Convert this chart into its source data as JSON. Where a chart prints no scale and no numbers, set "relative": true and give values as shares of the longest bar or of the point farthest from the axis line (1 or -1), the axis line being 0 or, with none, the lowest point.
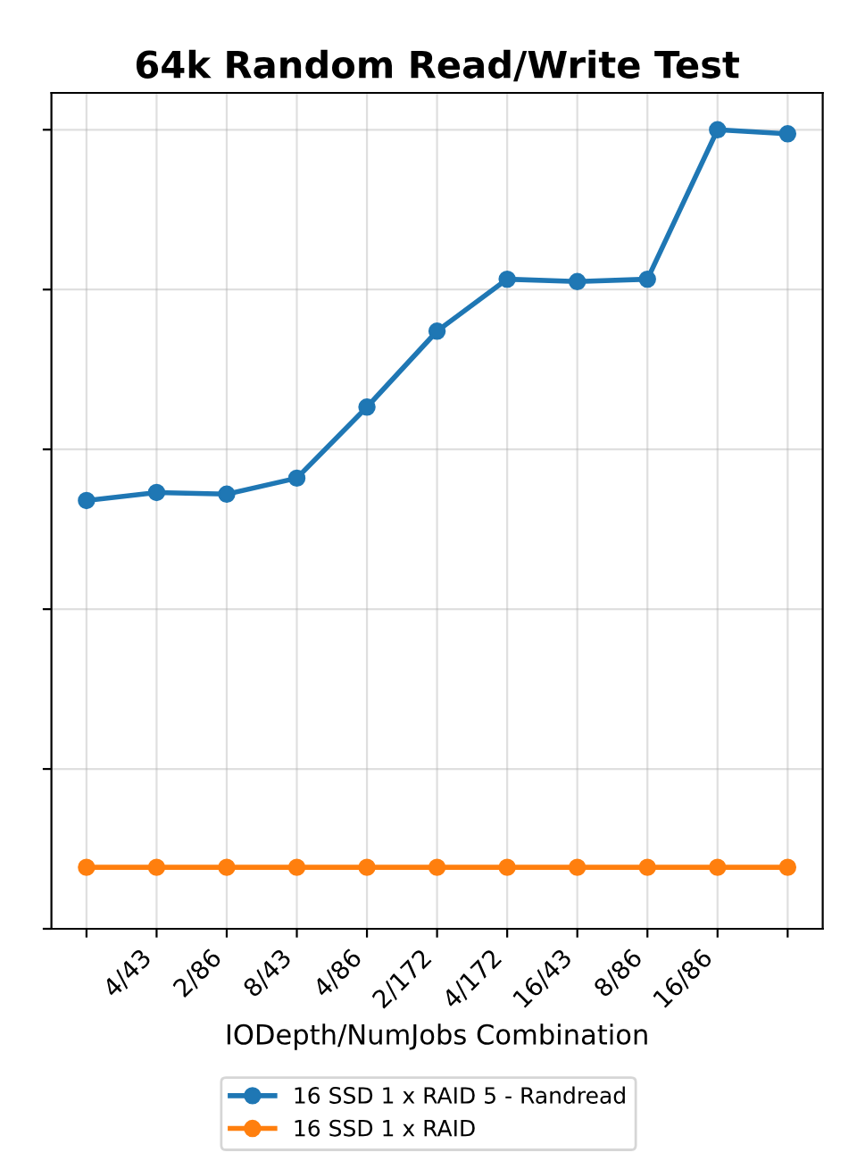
{
  "chart_data": {
    "type": "line",
    "title": "64k Random Read/Write Test",
    "xlabel": "IODepth/NumJobs Combination",
    "categories": [
      null,
      "4/43",
      "2/86",
      "8/43",
      "4/86",
      "2/172",
      "4/172",
      "16/43",
      "8/86",
      "16/86",
      null
    ],
    "relative": true,
    "grid": true,
    "legend": "bottom",
    "marker": "circle",
    "line_style": "solid",
    "tick_labels": "x",
    "series": [
      {
        "name": "16 SSD 1 x RAID 5 - Randread",
        "color": "#1f77b4",
        "values": [
          0.536,
          0.546,
          0.544,
          0.564,
          0.653,
          0.748,
          0.813,
          0.81,
          0.813,
          1,
          0.995
        ]
      },
      {
        "name": "16 SSD 1 x RAID",
        "color": "#ff7f0e",
        "values": [
          0.077,
          0.077,
          0.077,
          0.077,
          0.077,
          0.077,
          0.077,
          0.077,
          0.077,
          0.077,
          0.077
        ]
      }
    ]
  }
}
